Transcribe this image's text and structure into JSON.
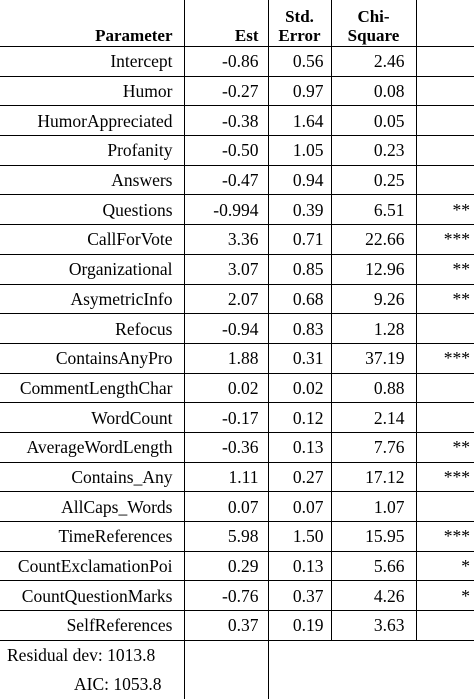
{
  "headers": {
    "parameter": "Parameter",
    "est": "Est",
    "std_line1": "Std.",
    "std_line2": "Error",
    "chi_line1": "Chi-",
    "chi_line2": "Square",
    "sig": ""
  },
  "rows": [
    {
      "parameter": "Intercept",
      "est": "-0.86",
      "std": "0.56",
      "chi": "2.46",
      "sig": ""
    },
    {
      "parameter": "Humor",
      "est": "-0.27",
      "std": "0.97",
      "chi": "0.08",
      "sig": ""
    },
    {
      "parameter": "HumorAppreciated",
      "est": "-0.38",
      "std": "1.64",
      "chi": "0.05",
      "sig": ""
    },
    {
      "parameter": "Profanity",
      "est": "-0.50",
      "std": "1.05",
      "chi": "0.23",
      "sig": ""
    },
    {
      "parameter": "Answers",
      "est": "-0.47",
      "std": "0.94",
      "chi": "0.25",
      "sig": ""
    },
    {
      "parameter": "Questions",
      "est": "-0.994",
      "std": "0.39",
      "chi": "6.51",
      "sig": "**"
    },
    {
      "parameter": "CallForVote",
      "est": "3.36",
      "std": "0.71",
      "chi": "22.66",
      "sig": "***"
    },
    {
      "parameter": "Organizational",
      "est": "3.07",
      "std": "0.85",
      "chi": "12.96",
      "sig": "**"
    },
    {
      "parameter": "AsymetricInfo",
      "est": "2.07",
      "std": "0.68",
      "chi": "9.26",
      "sig": "**"
    },
    {
      "parameter": "Refocus",
      "est": "-0.94",
      "std": "0.83",
      "chi": "1.28",
      "sig": ""
    },
    {
      "parameter": "ContainsAnyPro",
      "est": "1.88",
      "std": "0.31",
      "chi": "37.19",
      "sig": "***"
    },
    {
      "parameter": "CommentLengthChar",
      "est": "0.02",
      "std": "0.02",
      "chi": "0.88",
      "sig": ""
    },
    {
      "parameter": "WordCount",
      "est": "-0.17",
      "std": "0.12",
      "chi": "2.14",
      "sig": ""
    },
    {
      "parameter": "AverageWordLength",
      "est": "-0.36",
      "std": "0.13",
      "chi": "7.76",
      "sig": "**"
    },
    {
      "parameter": "Contains_Any",
      "est": "1.11",
      "std": "0.27",
      "chi": "17.12",
      "sig": "***"
    },
    {
      "parameter": "AllCaps_Words",
      "est": "0.07",
      "std": "0.07",
      "chi": "1.07",
      "sig": ""
    },
    {
      "parameter": "TimeReferences",
      "est": "5.98",
      "std": "1.50",
      "chi": "15.95",
      "sig": "***"
    },
    {
      "parameter": "CountExclamationPoi",
      "est": "0.29",
      "std": "0.13",
      "chi": "5.66",
      "sig": "*"
    },
    {
      "parameter": "CountQuestionMarks",
      "est": "-0.76",
      "std": "0.37",
      "chi": "4.26",
      "sig": "*"
    },
    {
      "parameter": "SelfReferences",
      "est": "0.37",
      "std": "0.19",
      "chi": "3.63",
      "sig": ""
    }
  ],
  "footer": {
    "residual_dev": "Residual dev: 1013.8",
    "aic": "AIC: 1053.8"
  }
}
